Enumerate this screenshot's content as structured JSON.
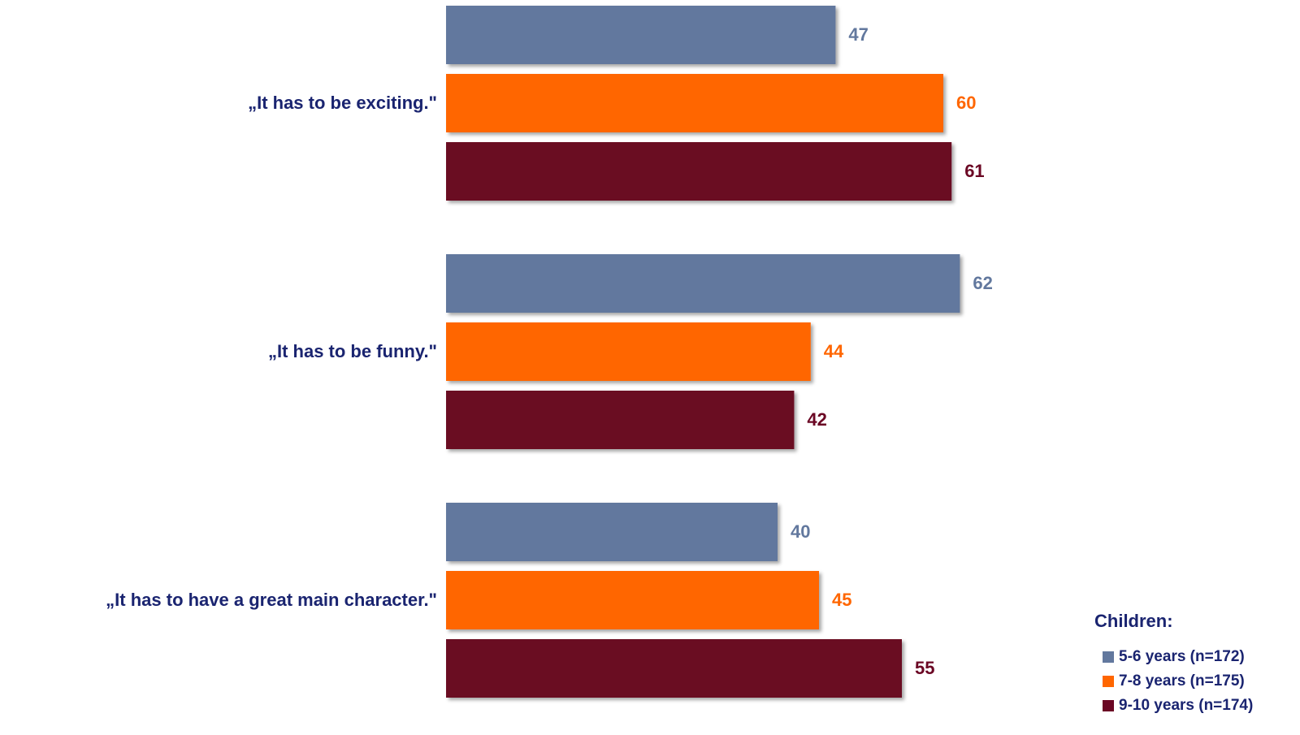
{
  "chart_data": {
    "type": "bar",
    "orientation": "horizontal",
    "categories": [
      "„It has to be exciting.\"",
      "„It has to be funny.\"",
      "„It has to have a great main character.\""
    ],
    "series": [
      {
        "name": "5-6 years (n=172)",
        "color": "#62789e",
        "values": [
          47,
          62,
          40
        ]
      },
      {
        "name": "7-8 years (n=175)",
        "color": "#ff6600",
        "values": [
          60,
          44,
          45
        ]
      },
      {
        "name": "9-10 years (n=174)",
        "color": "#6b0724",
        "values": [
          61,
          42,
          55
        ]
      }
    ],
    "xlim": [
      0,
      100
    ],
    "grid": false,
    "data_labels": true,
    "legend": {
      "title": "Children:",
      "position": "bottom-right"
    }
  }
}
